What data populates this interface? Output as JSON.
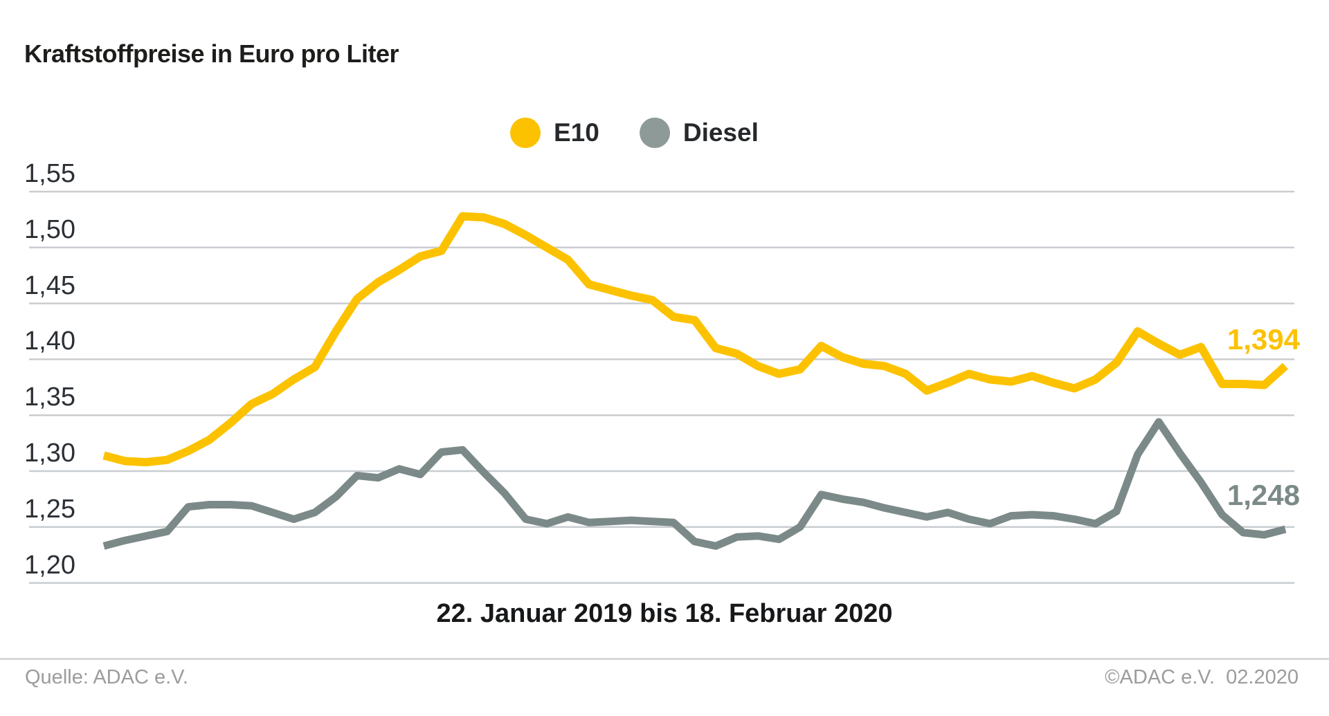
{
  "title": "Kraftstoffpreise in Euro pro Liter",
  "caption": "22. Januar 2019 bis 18. Februar 2020",
  "footer": {
    "source": "Quelle: ADAC e.V.",
    "copyright": "©ADAC e.V.  02.2020"
  },
  "colors": {
    "e10": "#fcc200",
    "diesel": "#7b8a88",
    "legend_dot_diesel": "#8e9a97",
    "gridline": "#c9cdd0",
    "title_text": "#1d1d1b",
    "footer_text": "#9c9c9c"
  },
  "chart_data": {
    "type": "line",
    "title": "Kraftstoffpreise in Euro pro Liter",
    "xlabel": "22. Januar 2019 bis 18. Februar 2020",
    "ylabel": "Euro pro Liter",
    "x_description": "57 wöchentliche Werte, 22.01.2019 bis 18.02.2020 (keine X-Tick-Beschriftungen sichtbar)",
    "ylim": [
      1.2,
      1.55
    ],
    "grid": true,
    "legend_position": "top-center",
    "y_ticks": [
      {
        "v": 1.55,
        "label": "1,55"
      },
      {
        "v": 1.5,
        "label": "1,50"
      },
      {
        "v": 1.45,
        "label": "1,45"
      },
      {
        "v": 1.4,
        "label": "1,40"
      },
      {
        "v": 1.35,
        "label": "1,35"
      },
      {
        "v": 1.3,
        "label": "1,30"
      },
      {
        "v": 1.25,
        "label": "1,25"
      },
      {
        "v": 1.2,
        "label": "1,20"
      }
    ],
    "series": [
      {
        "name": "E10",
        "color": "#fcc200",
        "end_label": "1,394",
        "last_value": 1.394,
        "values": [
          1.314,
          1.309,
          1.308,
          1.31,
          1.318,
          1.328,
          1.343,
          1.36,
          1.369,
          1.382,
          1.393,
          1.425,
          1.454,
          1.469,
          1.48,
          1.492,
          1.497,
          1.528,
          1.527,
          1.521,
          1.511,
          1.5,
          1.489,
          1.467,
          1.462,
          1.457,
          1.453,
          1.438,
          1.435,
          1.41,
          1.405,
          1.394,
          1.387,
          1.391,
          1.412,
          1.402,
          1.396,
          1.394,
          1.387,
          1.372,
          1.379,
          1.387,
          1.382,
          1.38,
          1.385,
          1.379,
          1.374,
          1.382,
          1.397,
          1.425,
          1.414,
          1.404,
          1.411,
          1.378,
          1.378,
          1.377,
          1.394
        ]
      },
      {
        "name": "Diesel",
        "color": "#7b8a88",
        "end_label": "1,248",
        "last_value": 1.248,
        "values": [
          1.233,
          1.238,
          1.242,
          1.246,
          1.268,
          1.27,
          1.27,
          1.269,
          1.263,
          1.257,
          1.263,
          1.277,
          1.296,
          1.294,
          1.302,
          1.297,
          1.317,
          1.319,
          1.299,
          1.28,
          1.257,
          1.253,
          1.259,
          1.254,
          1.255,
          1.256,
          1.255,
          1.254,
          1.237,
          1.233,
          1.241,
          1.242,
          1.239,
          1.25,
          1.279,
          1.275,
          1.272,
          1.267,
          1.263,
          1.259,
          1.263,
          1.257,
          1.253,
          1.26,
          1.261,
          1.26,
          1.257,
          1.253,
          1.264,
          1.315,
          1.344,
          1.316,
          1.29,
          1.261,
          1.245,
          1.243,
          1.248
        ]
      }
    ]
  }
}
